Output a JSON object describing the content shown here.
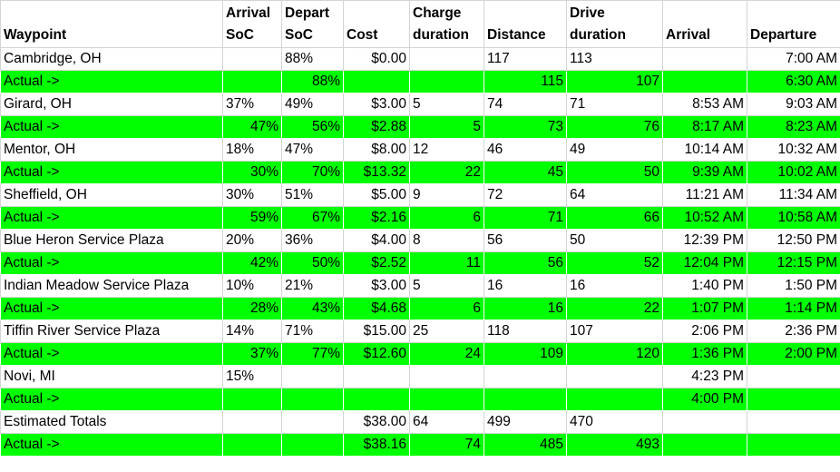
{
  "columns": [
    [
      "Waypoint"
    ],
    [
      "Arrival",
      "SoC"
    ],
    [
      "Depart",
      "SoC"
    ],
    [
      "Cost"
    ],
    [
      "Charge",
      "duration"
    ],
    [
      "Distance"
    ],
    [
      "Drive",
      "duration"
    ],
    [
      "Arrival"
    ],
    [
      "Departure"
    ]
  ],
  "rows": [
    {
      "type": "planned",
      "cells": [
        "Cambridge, OH",
        "",
        "88%",
        "$0.00",
        "",
        "117",
        "113",
        "",
        "7:00 AM"
      ]
    },
    {
      "type": "actual",
      "cells": [
        "Actual ->",
        "",
        "88%",
        "",
        "",
        "115",
        "107",
        "",
        "6:30 AM"
      ]
    },
    {
      "type": "planned",
      "cells": [
        "Girard, OH",
        "37%",
        "49%",
        "$3.00",
        "5",
        "74",
        "71",
        "8:53 AM",
        "9:03 AM"
      ]
    },
    {
      "type": "actual",
      "cells": [
        "Actual ->",
        "47%",
        "56%",
        "$2.88",
        "5",
        "73",
        "76",
        "8:17 AM",
        "8:23 AM"
      ]
    },
    {
      "type": "planned",
      "cells": [
        "Mentor, OH",
        "18%",
        "47%",
        "$8.00",
        "12",
        "46",
        "49",
        "10:14 AM",
        "10:32 AM"
      ]
    },
    {
      "type": "actual",
      "cells": [
        "Actual ->",
        "30%",
        "70%",
        "$13.32",
        "22",
        "45",
        "50",
        "9:39 AM",
        "10:02 AM"
      ]
    },
    {
      "type": "planned",
      "cells": [
        "Sheffield, OH",
        "30%",
        "51%",
        "$5.00",
        "9",
        "72",
        "64",
        "11:21 AM",
        "11:34 AM"
      ]
    },
    {
      "type": "actual",
      "cells": [
        "Actual ->",
        "59%",
        "67%",
        "$2.16",
        "6",
        "71",
        "66",
        "10:52 AM",
        "10:58 AM"
      ]
    },
    {
      "type": "planned",
      "cells": [
        "Blue Heron Service Plaza",
        "20%",
        "36%",
        "$4.00",
        "8",
        "56",
        "50",
        "12:39 PM",
        "12:50 PM"
      ]
    },
    {
      "type": "actual",
      "cells": [
        "Actual ->",
        "42%",
        "50%",
        "$2.52",
        "11",
        "56",
        "52",
        "12:04 PM",
        "12:15 PM"
      ]
    },
    {
      "type": "planned",
      "cells": [
        "Indian Meadow Service Plaza",
        "10%",
        "21%",
        "$3.00",
        "5",
        "16",
        "16",
        "1:40 PM",
        "1:50 PM"
      ]
    },
    {
      "type": "actual",
      "cells": [
        "Actual ->",
        "28%",
        "43%",
        "$4.68",
        "6",
        "16",
        "22",
        "1:07 PM",
        "1:14 PM"
      ]
    },
    {
      "type": "planned",
      "cells": [
        "Tiffin River Service Plaza",
        "14%",
        "71%",
        "$15.00",
        "25",
        "118",
        "107",
        "2:06 PM",
        "2:36 PM"
      ]
    },
    {
      "type": "actual",
      "cells": [
        "Actual ->",
        "37%",
        "77%",
        "$12.60",
        "24",
        "109",
        "120",
        "1:36 PM",
        "2:00 PM"
      ]
    },
    {
      "type": "planned",
      "cells": [
        "Novi, MI",
        "15%",
        "",
        "",
        "",
        "",
        "",
        "4:23 PM",
        ""
      ]
    },
    {
      "type": "actual",
      "cells": [
        "Actual ->",
        "",
        "",
        "",
        "",
        "",
        "",
        "4:00 PM",
        ""
      ]
    },
    {
      "type": "planned",
      "cells": [
        "Estimated Totals",
        "",
        "",
        "$38.00",
        "64",
        "499",
        "470",
        "",
        ""
      ]
    },
    {
      "type": "actual",
      "cells": [
        "Actual ->",
        "",
        "",
        "$38.16",
        "74",
        "485",
        "493",
        "",
        ""
      ]
    }
  ],
  "colors": {
    "actual_row": "#00ff00",
    "planned_row": "#ffffff",
    "gridline": "#d4d4d4"
  }
}
